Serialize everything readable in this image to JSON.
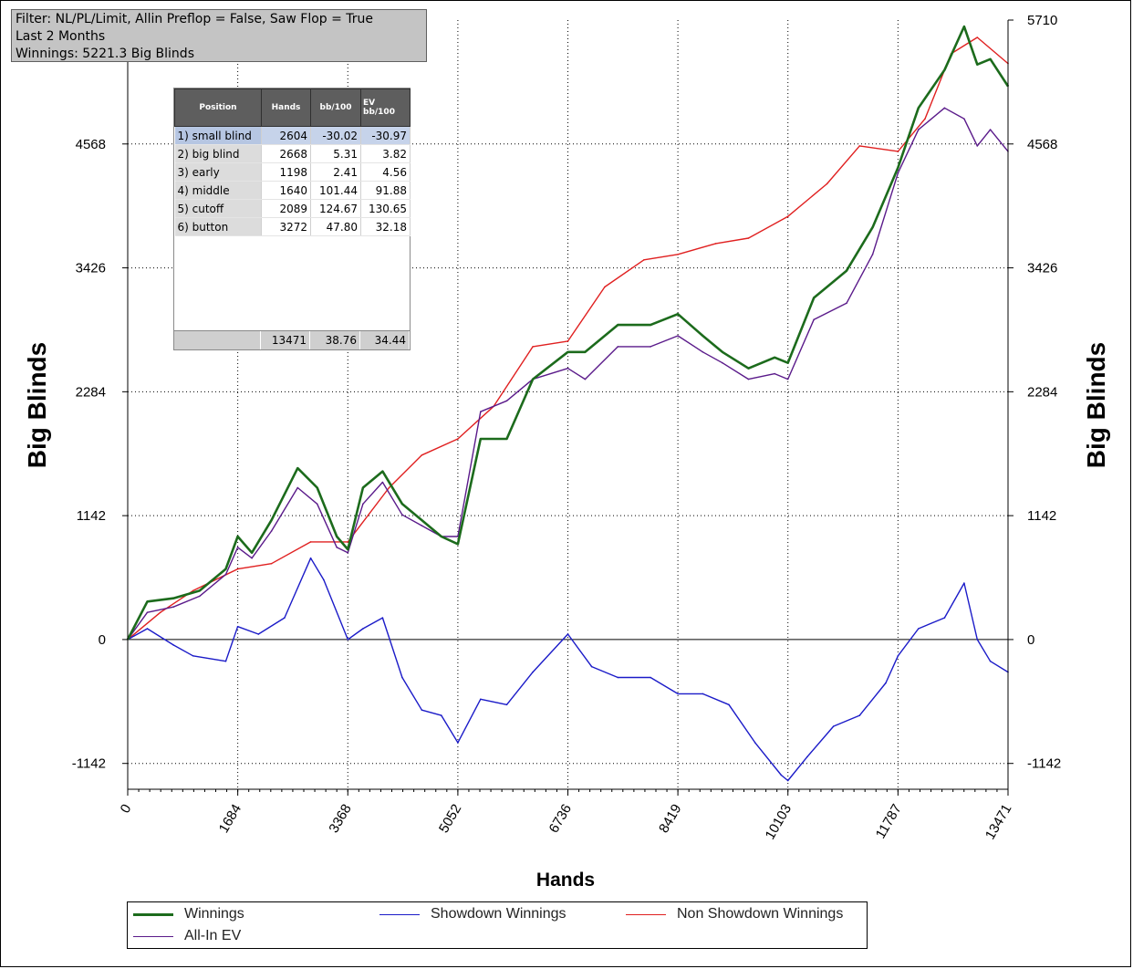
{
  "info": {
    "filter": "Filter: NL/PL/Limit, Allin Preflop = False, Saw Flop = True",
    "period": "Last  2 Months",
    "winnings": "Winnings: 5221.3 Big Blinds"
  },
  "position_table": {
    "headers": [
      "Position",
      "Hands",
      "bb/100",
      "EV bb/100"
    ],
    "rows": [
      {
        "position": "1) small blind",
        "hands": "2604",
        "bb100": "-30.02",
        "ev": "-30.97",
        "selected": true
      },
      {
        "position": "2) big blind",
        "hands": "2668",
        "bb100": "5.31",
        "ev": "3.82"
      },
      {
        "position": "3) early",
        "hands": "1198",
        "bb100": "2.41",
        "ev": "4.56"
      },
      {
        "position": "4) middle",
        "hands": "1640",
        "bb100": "101.44",
        "ev": "91.88"
      },
      {
        "position": "5) cutoff",
        "hands": "2089",
        "bb100": "124.67",
        "ev": "130.65"
      },
      {
        "position": "6) button",
        "hands": "3272",
        "bb100": "47.80",
        "ev": "32.18"
      }
    ],
    "totals": {
      "hands": "13471",
      "bb100": "38.76",
      "ev": "34.44"
    }
  },
  "legend": [
    {
      "name": "Winnings",
      "color": "#1c6b1c"
    },
    {
      "name": "Showdown Winnings",
      "color": "#1b1bc8"
    },
    {
      "name": "Non Showdown Winnings",
      "color": "#e02020"
    },
    {
      "name": "All-In EV",
      "color": "#5a1a8a"
    }
  ],
  "chart_data": {
    "type": "line",
    "xlabel": "Hands",
    "ylabel": "Big Blinds",
    "xlim": [
      0,
      13471
    ],
    "ylim": [
      -1380,
      5710
    ],
    "x_ticks": [
      0,
      1684,
      3368,
      5052,
      6736,
      8419,
      10103,
      11787,
      13471
    ],
    "y_ticks": [
      -1142,
      0,
      1142,
      2284,
      3426,
      4568,
      5710
    ],
    "grid": true,
    "series": [
      {
        "name": "Winnings",
        "color": "#1c6b1c",
        "x": [
          0,
          300,
          700,
          1100,
          1500,
          1684,
          1900,
          2200,
          2600,
          2900,
          3200,
          3368,
          3600,
          3900,
          4200,
          4500,
          4800,
          5052,
          5400,
          5800,
          6200,
          6736,
          7000,
          7500,
          8000,
          8419,
          8800,
          9100,
          9500,
          9900,
          10103,
          10500,
          11000,
          11400,
          11787,
          12100,
          12500,
          12800,
          13000,
          13200,
          13471
        ],
        "y": [
          0,
          350,
          380,
          450,
          650,
          950,
          800,
          1100,
          1580,
          1400,
          950,
          830,
          1400,
          1550,
          1250,
          1100,
          950,
          880,
          1850,
          1850,
          2400,
          2650,
          2650,
          2900,
          2900,
          3000,
          2800,
          2650,
          2500,
          2600,
          2550,
          3150,
          3400,
          3800,
          4350,
          4900,
          5250,
          5650,
          5300,
          5350,
          5100
        ]
      },
      {
        "name": "Showdown Winnings",
        "color": "#1b1bc8",
        "x": [
          0,
          300,
          700,
          1000,
          1500,
          1684,
          2000,
          2400,
          2800,
          3000,
          3368,
          3600,
          3900,
          4200,
          4500,
          4800,
          5052,
          5400,
          5800,
          6200,
          6736,
          7100,
          7500,
          8000,
          8419,
          8800,
          9200,
          9600,
          10000,
          10103,
          10400,
          10800,
          11200,
          11600,
          11787,
          12100,
          12500,
          12800,
          13000,
          13200,
          13471
        ],
        "y": [
          0,
          100,
          -50,
          -150,
          -200,
          120,
          50,
          200,
          750,
          550,
          0,
          100,
          200,
          -350,
          -650,
          -700,
          -950,
          -550,
          -600,
          -300,
          50,
          -250,
          -350,
          -350,
          -500,
          -500,
          -600,
          -950,
          -1250,
          -1300,
          -1080,
          -800,
          -700,
          -400,
          -150,
          100,
          200,
          520,
          0,
          -200,
          -300
        ]
      },
      {
        "name": "Non Showdown Winnings",
        "color": "#e02020",
        "x": [
          0,
          500,
          1000,
          1684,
          2200,
          2800,
          3368,
          4000,
          4500,
          5052,
          5600,
          6200,
          6736,
          7300,
          7900,
          8419,
          9000,
          9500,
          10103,
          10700,
          11200,
          11787,
          12200,
          12600,
          13000,
          13471
        ],
        "y": [
          0,
          250,
          450,
          650,
          700,
          900,
          900,
          1400,
          1700,
          1850,
          2150,
          2700,
          2750,
          3250,
          3500,
          3550,
          3650,
          3700,
          3900,
          4200,
          4550,
          4500,
          4800,
          5400,
          5550,
          5310
        ]
      },
      {
        "name": "All-In EV",
        "color": "#5a1a8a",
        "x": [
          0,
          300,
          700,
          1100,
          1500,
          1684,
          1900,
          2200,
          2600,
          2900,
          3200,
          3368,
          3600,
          3900,
          4200,
          4500,
          4800,
          5052,
          5400,
          5800,
          6200,
          6736,
          7000,
          7500,
          8000,
          8419,
          8800,
          9100,
          9500,
          9900,
          10103,
          10500,
          11000,
          11400,
          11787,
          12100,
          12500,
          12800,
          13000,
          13200,
          13471
        ],
        "y": [
          0,
          250,
          300,
          400,
          600,
          850,
          750,
          1000,
          1400,
          1250,
          850,
          800,
          1250,
          1450,
          1150,
          1050,
          950,
          950,
          2100,
          2200,
          2400,
          2500,
          2400,
          2700,
          2700,
          2800,
          2650,
          2550,
          2400,
          2450,
          2400,
          2950,
          3100,
          3550,
          4300,
          4700,
          4900,
          4800,
          4550,
          4700,
          4500
        ]
      }
    ]
  }
}
